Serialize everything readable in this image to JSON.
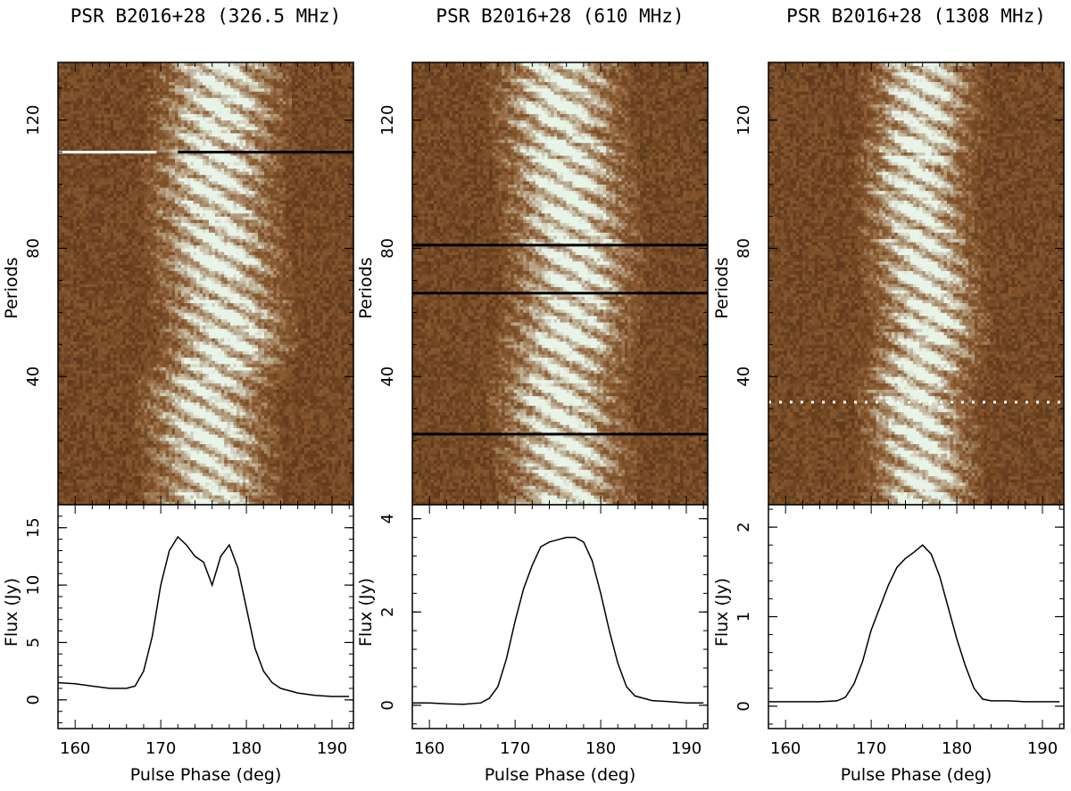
{
  "chart_data": [
    {
      "type": "heatmap",
      "title": "PSR B2016+28 (326.5 MHz)",
      "waterfall": {
        "ylabel": "Periods",
        "y_ticks": [
          40,
          80,
          120
        ],
        "ylim": [
          0,
          138
        ],
        "xlim": [
          158,
          192.5
        ],
        "emission_window_deg": [
          169,
          183
        ],
        "drift_band_centers": [
          {
            "period": 10,
            "phase": 176
          },
          {
            "period": 35,
            "phase": 175
          },
          {
            "period": 50,
            "phase": 178
          },
          {
            "period": 70,
            "phase": 177
          },
          {
            "period": 100,
            "phase": 176
          },
          {
            "period": 125,
            "phase": 177
          }
        ],
        "horizontal_artifacts": [
          {
            "period": 110,
            "phase_range": [
              158,
              169.5
            ],
            "color": "white"
          },
          {
            "period": 110,
            "phase_range": [
              172,
              192.5
            ],
            "color": "black"
          }
        ]
      },
      "profile": {
        "type": "line",
        "ylabel": "Flux (Jy)",
        "xlabel": "Pulse Phase (deg)",
        "x_ticks": [
          160,
          170,
          180,
          190
        ],
        "y_ticks": [
          0,
          5,
          10,
          15
        ],
        "xlim": [
          158,
          192.5
        ],
        "ylim": [
          -2.5,
          17
        ],
        "x": [
          158,
          160,
          162,
          164,
          166,
          167,
          168,
          169,
          170,
          171,
          172,
          173,
          174,
          175,
          176,
          177,
          178,
          179,
          180,
          181,
          182,
          183,
          184,
          186,
          188,
          190,
          192
        ],
        "y": [
          1.5,
          1.4,
          1.2,
          1.0,
          1.0,
          1.2,
          2.5,
          5.5,
          10.0,
          13.0,
          14.2,
          13.5,
          12.5,
          12.0,
          10.0,
          12.5,
          13.5,
          11.5,
          8.0,
          4.5,
          2.5,
          1.5,
          1.0,
          0.6,
          0.4,
          0.3,
          0.3
        ]
      }
    },
    {
      "type": "heatmap",
      "title": "PSR B2016+28 (610 MHz)",
      "waterfall": {
        "ylabel": "Periods",
        "y_ticks": [
          40,
          80,
          120
        ],
        "ylim": [
          0,
          138
        ],
        "xlim": [
          158,
          192.5
        ],
        "emission_window_deg": [
          169,
          183
        ],
        "drift_band_centers": [
          {
            "period": 10,
            "phase": 176
          },
          {
            "period": 35,
            "phase": 175
          },
          {
            "period": 50,
            "phase": 176
          },
          {
            "period": 70,
            "phase": 177
          },
          {
            "period": 100,
            "phase": 176
          },
          {
            "period": 125,
            "phase": 175
          }
        ],
        "horizontal_artifacts": [
          {
            "period": 22,
            "phase_range": [
              158,
              192.5
            ],
            "color": "black"
          },
          {
            "period": 81,
            "phase_range": [
              158,
              192.5
            ],
            "color": "black"
          },
          {
            "period": 66,
            "phase_range": [
              158,
              192.5
            ],
            "color": "black"
          }
        ]
      },
      "profile": {
        "type": "line",
        "ylabel": "Flux (Jy)",
        "xlabel": "Pulse Phase (deg)",
        "x_ticks": [
          160,
          170,
          180,
          190
        ],
        "y_ticks": [
          0,
          2,
          4
        ],
        "xlim": [
          158,
          192.5
        ],
        "ylim": [
          -0.5,
          4.3
        ],
        "x": [
          158,
          160,
          162,
          164,
          166,
          167,
          168,
          169,
          170,
          171,
          172,
          173,
          174,
          175,
          176,
          177,
          178,
          179,
          180,
          181,
          182,
          183,
          184,
          186,
          188,
          190,
          192
        ],
        "y": [
          0.05,
          0.05,
          0.03,
          0.02,
          0.05,
          0.15,
          0.4,
          1.0,
          1.8,
          2.5,
          3.0,
          3.4,
          3.5,
          3.55,
          3.6,
          3.6,
          3.5,
          3.1,
          2.4,
          1.6,
          0.9,
          0.4,
          0.2,
          0.1,
          0.08,
          0.05,
          0.05
        ]
      }
    },
    {
      "type": "heatmap",
      "title": "PSR B2016+28 (1308 MHz)",
      "waterfall": {
        "ylabel": "Periods",
        "y_ticks": [
          40,
          80,
          120
        ],
        "ylim": [
          0,
          138
        ],
        "xlim": [
          158,
          192.5
        ],
        "emission_window_deg": [
          170,
          182
        ],
        "drift_band_centers": [
          {
            "period": 10,
            "phase": 176
          },
          {
            "period": 35,
            "phase": 175
          },
          {
            "period": 55,
            "phase": 177
          },
          {
            "period": 75,
            "phase": 176
          },
          {
            "period": 100,
            "phase": 175
          },
          {
            "period": 125,
            "phase": 176
          }
        ],
        "horizontal_artifacts": [
          {
            "period": 32,
            "phase_range": [
              158,
              192.5
            ],
            "color": "white-dashed"
          }
        ]
      },
      "profile": {
        "type": "line",
        "ylabel": "Flux (Jy)",
        "xlabel": "Pulse Phase (deg)",
        "x_ticks": [
          160,
          170,
          180,
          190
        ],
        "y_ticks": [
          0,
          1,
          2
        ],
        "xlim": [
          158,
          192.5
        ],
        "ylim": [
          -0.25,
          2.25
        ],
        "x": [
          158,
          160,
          162,
          164,
          166,
          167,
          168,
          169,
          170,
          171,
          172,
          173,
          174,
          175,
          176,
          177,
          178,
          179,
          180,
          181,
          182,
          183,
          184,
          186,
          188,
          190,
          192
        ],
        "y": [
          0.05,
          0.05,
          0.05,
          0.05,
          0.06,
          0.1,
          0.25,
          0.5,
          0.85,
          1.1,
          1.35,
          1.55,
          1.65,
          1.72,
          1.8,
          1.7,
          1.45,
          1.1,
          0.75,
          0.45,
          0.2,
          0.08,
          0.06,
          0.06,
          0.05,
          0.05,
          0.05
        ]
      }
    }
  ],
  "colors": {
    "background": "#ffffff",
    "ink": "#000000",
    "colormap_low": "#3a1e0a",
    "colormap_mid": "#8a5a30",
    "colormap_high": "#e8f4e8"
  }
}
